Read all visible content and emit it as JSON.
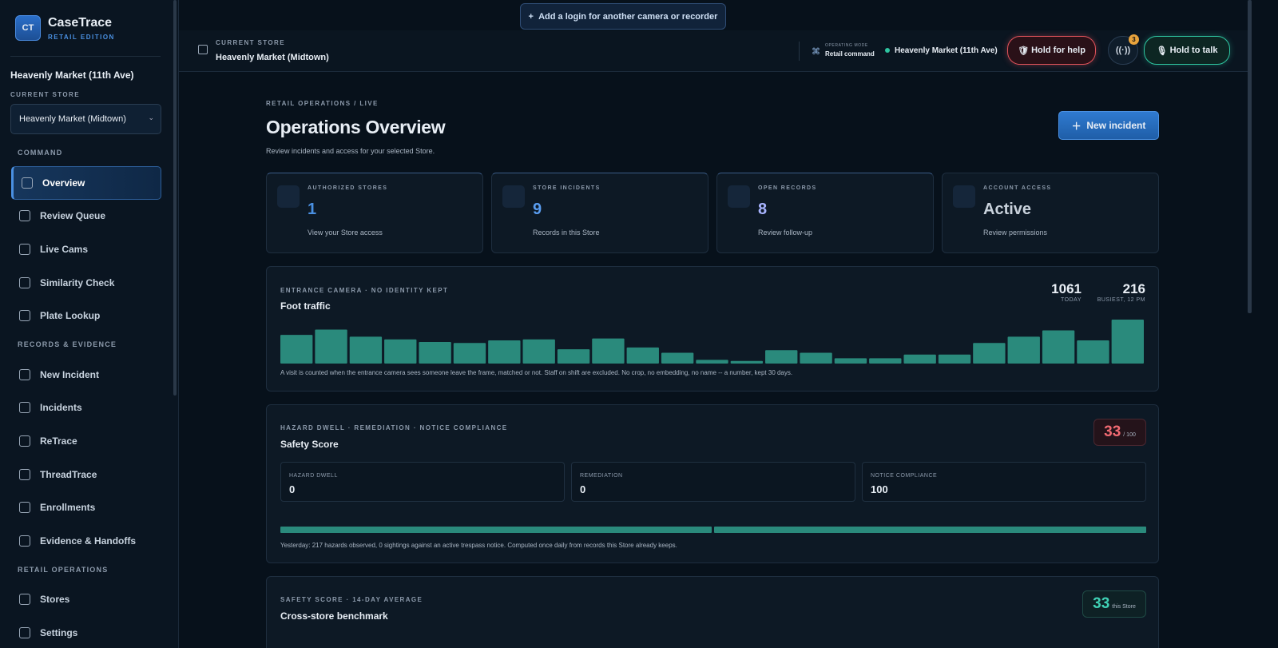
{
  "brand": {
    "logo": "CT",
    "name": "CaseTrace",
    "edition": "RETAIL EDITION"
  },
  "sidebar": {
    "store_name": "Heavenly Market (11th Ave)",
    "store_label": "CURRENT STORE",
    "store_select": "Heavenly Market (Midtown)",
    "sections": [
      {
        "title": "COMMAND",
        "items": [
          "Overview",
          "Review Queue",
          "Live Cams",
          "Similarity Check",
          "Plate Lookup"
        ]
      },
      {
        "title": "RECORDS & EVIDENCE",
        "items": [
          "New Incident",
          "Incidents",
          "ReTrace",
          "ThreadTrace",
          "Enrollments",
          "Evidence & Handoffs"
        ]
      },
      {
        "title": "RETAIL OPERATIONS",
        "items": [
          "Stores",
          "Settings"
        ]
      }
    ]
  },
  "banner": "Add a login for another camera or recorder",
  "topbar": {
    "store_label": "CURRENT STORE",
    "store": "Heavenly Market (Midtown)",
    "mode_label": "OPERATING MODE",
    "mode": "Retail command",
    "location": "Heavenly Market (11th Ave)",
    "help": "Hold for help",
    "badge": 3,
    "talk": "Hold to talk"
  },
  "page": {
    "breadcrumb": "RETAIL OPERATIONS / LIVE",
    "title": "Operations Overview",
    "subtitle": "Review incidents and access for your selected Store.",
    "new_incident": "New incident"
  },
  "stats": [
    {
      "label": "AUTHORIZED STORES",
      "value": 1,
      "note": "View your Store access"
    },
    {
      "label": "STORE INCIDENTS",
      "value": 9,
      "note": "Records in this Store"
    },
    {
      "label": "OPEN RECORDS",
      "value": 8,
      "note": "Review follow-up"
    },
    {
      "label": "ACCOUNT ACCESS",
      "value": "Active",
      "note": "Review permissions"
    }
  ],
  "foot_traffic": {
    "eyebrow": "ENTRANCE CAMERA · NO IDENTITY KEPT",
    "title": "Foot traffic",
    "today": 1061,
    "today_label": "TODAY",
    "busiest": 216,
    "busiest_label": "BUSIEST, 12 PM",
    "values": [
      141,
      167,
      132,
      119,
      106,
      101,
      114,
      119,
      70,
      123,
      79,
      53,
      18,
      13,
      66,
      53,
      26,
      26,
      44,
      44,
      101,
      132,
      163,
      114,
      216
    ],
    "note": "A visit is counted when the entrance camera sees someone leave the frame, matched or not. Staff on shift are excluded. No crop, no embedding, no name -- a number, kept 30 days."
  },
  "safety": {
    "eyebrow": "HAZARD DWELL · REMEDIATION · NOTICE COMPLIANCE",
    "title": "Safety Score",
    "score": 33,
    "score_max": "/ 100",
    "metrics": [
      {
        "label": "HAZARD DWELL",
        "value": 0
      },
      {
        "label": "REMEDIATION",
        "value": 0
      },
      {
        "label": "NOTICE COMPLIANCE",
        "value": 100
      }
    ],
    "note": "Yesterday: 217 hazards observed, 0 sightings against an active trespass notice. Computed once daily from records this Store already keeps."
  },
  "benchmark": {
    "eyebrow": "SAFETY SCORE · 14-DAY AVERAGE",
    "title": "Cross-store benchmark",
    "score": 33,
    "score_note": "this Store"
  }
}
